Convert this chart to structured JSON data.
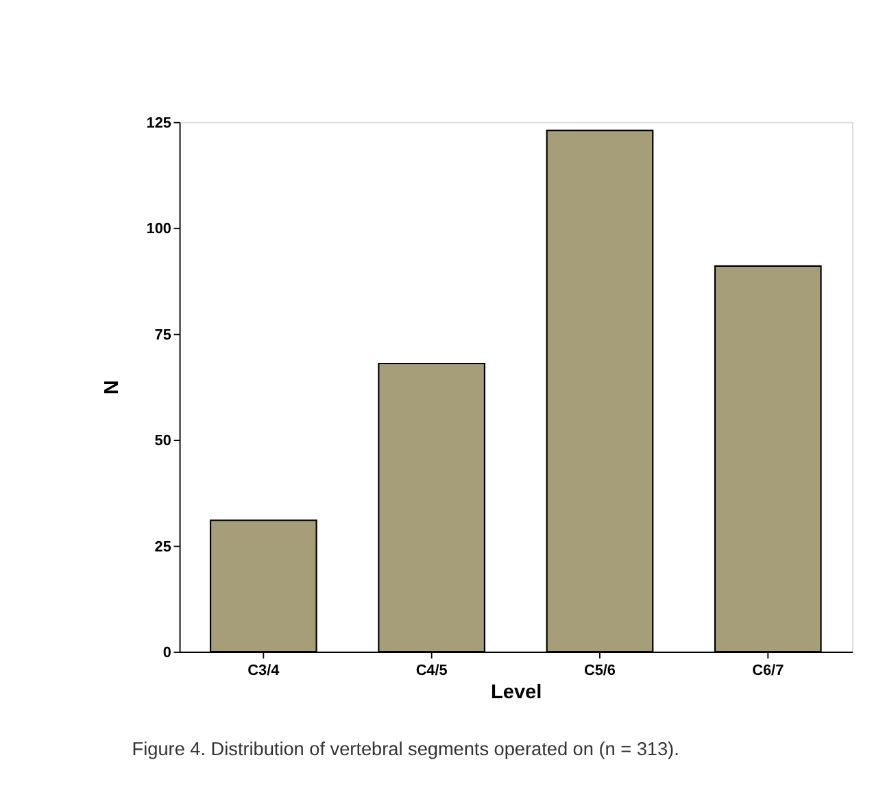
{
  "chart_data": {
    "type": "bar",
    "xlabel": "Level",
    "ylabel": "N",
    "categories": [
      "C3/4",
      "C4/5",
      "C5/6",
      "C6/7"
    ],
    "values": [
      31,
      68,
      123,
      91
    ],
    "color": "#a69e79",
    "ylim": [
      0,
      125
    ],
    "yticks": [
      0,
      25,
      50,
      75,
      100,
      125
    ],
    "grid": false,
    "annotations": [
      "Figure 4.  Distribution of vertebral segments operated on (n = 313)."
    ]
  }
}
